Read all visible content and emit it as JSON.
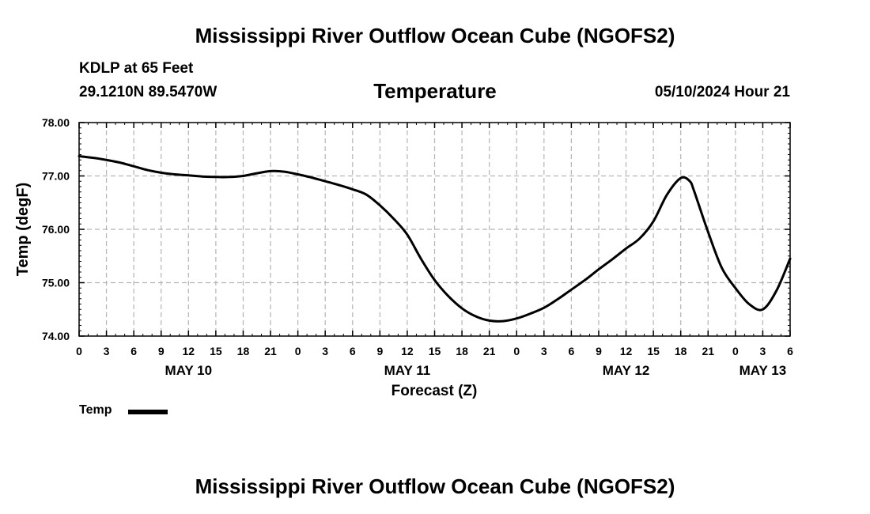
{
  "header": {
    "title": "Mississippi River Outflow Ocean Cube (NGOFS2)",
    "station": "KDLP at 65 Feet",
    "location": "29.1210N  89.5470W",
    "parameter": "Temperature",
    "datetime": "05/10/2024 Hour 21"
  },
  "footer": {
    "title": "Mississippi River Outflow Ocean Cube (NGOFS2)"
  },
  "legend": {
    "label": "Temp"
  },
  "chart_data": {
    "type": "line",
    "title": "Temperature",
    "xlabel": "Forecast (Z)",
    "ylabel": "Temp (degF)",
    "xlim": [
      0,
      78
    ],
    "ylim": [
      74.0,
      78.0
    ],
    "grid": true,
    "y_ticks": [
      74.0,
      75.0,
      76.0,
      77.0,
      78.0
    ],
    "y_tick_labels": [
      "74.00",
      "75.00",
      "76.00",
      "77.00",
      "78.00"
    ],
    "x_tick_hours": [
      0,
      3,
      6,
      9,
      12,
      15,
      18,
      21,
      24,
      27,
      30,
      33,
      36,
      39,
      42,
      45,
      48,
      51,
      54,
      57,
      60,
      63,
      66,
      69,
      72,
      75,
      78
    ],
    "x_tick_labels": [
      "0",
      "3",
      "6",
      "9",
      "12",
      "15",
      "18",
      "21",
      "0",
      "3",
      "6",
      "9",
      "12",
      "15",
      "18",
      "21",
      "0",
      "3",
      "6",
      "9",
      "12",
      "15",
      "18",
      "21",
      "0",
      "3",
      "6"
    ],
    "day_labels": [
      {
        "hour": 12,
        "label": "MAY 10"
      },
      {
        "hour": 36,
        "label": "MAY 11"
      },
      {
        "hour": 60,
        "label": "MAY 12"
      },
      {
        "hour": 75,
        "label": "MAY 13"
      }
    ],
    "series": [
      {
        "name": "Temp",
        "color": "#000000",
        "x": [
          0,
          1.5,
          3,
          4.5,
          6,
          7.5,
          9,
          10.5,
          12,
          13.5,
          15,
          16.5,
          18,
          19.5,
          21,
          22.5,
          24,
          25.5,
          27,
          28.5,
          30,
          31.5,
          33,
          34.5,
          36,
          37.5,
          39,
          40.5,
          42,
          43.5,
          45,
          46.5,
          48,
          49.5,
          51,
          52.5,
          54,
          55.5,
          57,
          58.5,
          60,
          61.5,
          63,
          64.5,
          66,
          67,
          67.5,
          69,
          70.5,
          72,
          73.5,
          75,
          76.5,
          78
        ],
        "values": [
          77.37,
          77.34,
          77.3,
          77.25,
          77.18,
          77.11,
          77.06,
          77.03,
          77.01,
          76.99,
          76.98,
          76.98,
          77.0,
          77.05,
          77.09,
          77.08,
          77.03,
          76.97,
          76.9,
          76.83,
          76.75,
          76.65,
          76.45,
          76.2,
          75.9,
          75.45,
          75.05,
          74.75,
          74.52,
          74.37,
          74.29,
          74.28,
          74.33,
          74.42,
          74.53,
          74.69,
          74.87,
          75.05,
          75.25,
          75.44,
          75.64,
          75.83,
          76.15,
          76.65,
          76.96,
          76.9,
          76.7,
          75.95,
          75.28,
          74.9,
          74.6,
          74.5,
          74.85,
          75.45
        ]
      }
    ]
  }
}
